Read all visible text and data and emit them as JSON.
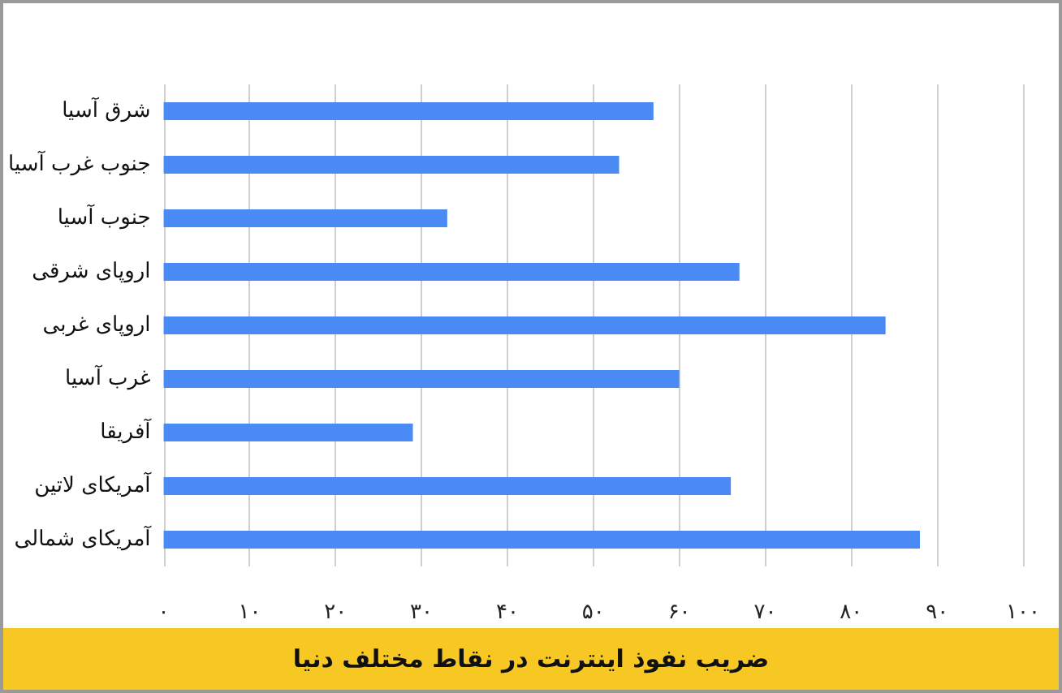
{
  "chart_data": {
    "type": "bar",
    "orientation": "horizontal",
    "title": "ضریب نفوذ اینترنت در نقاط مختلف دنیا",
    "categories": [
      "شرق آسیا",
      "جنوب غرب آسیا",
      "جنوب آسیا",
      "اروپای شرقی",
      "اروپای غربی",
      "غرب آسیا",
      "آفریقا",
      "آمریکای لاتین",
      "آمریکای شمالی"
    ],
    "values": [
      57,
      53,
      33,
      67,
      84,
      60,
      29,
      66,
      88
    ],
    "color": "#4a8af4",
    "xlim": [
      0,
      100
    ],
    "xticks": [
      {
        "value": 0,
        "label": "۰"
      },
      {
        "value": 10,
        "label": "۱۰"
      },
      {
        "value": 20,
        "label": "۲۰"
      },
      {
        "value": 30,
        "label": "۳۰"
      },
      {
        "value": 40,
        "label": "۴۰"
      },
      {
        "value": 50,
        "label": "۵۰"
      },
      {
        "value": 60,
        "label": "۶۰"
      },
      {
        "value": 70,
        "label": "۷۰"
      },
      {
        "value": 80,
        "label": "۸۰"
      },
      {
        "value": 90,
        "label": "۹۰"
      },
      {
        "value": 100,
        "label": "۱۰۰"
      }
    ],
    "grid": "x"
  }
}
